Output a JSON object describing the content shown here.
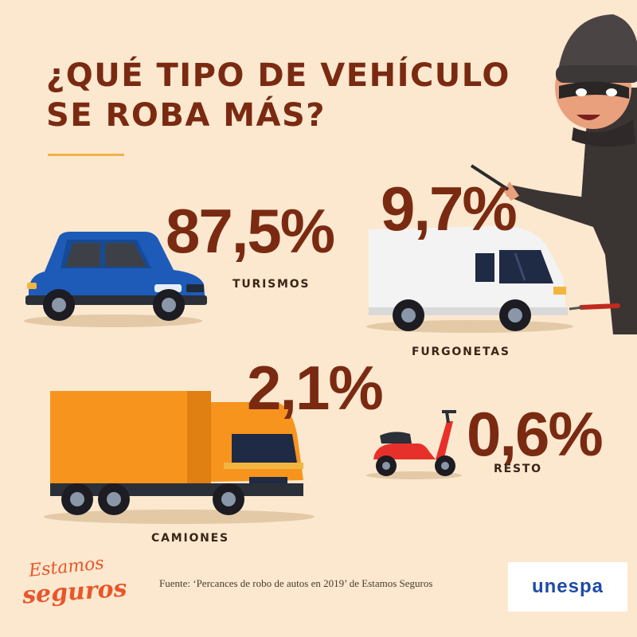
{
  "title": {
    "line1": "¿QUÉ TIPO DE VEHÍCULO",
    "line2": "SE ROBA MÁS?"
  },
  "stats": {
    "turismos": {
      "value": "87,5%",
      "label": "TURISMOS"
    },
    "furgonetas": {
      "value": "9,7%",
      "label": "FURGONETAS"
    },
    "camiones": {
      "value": "2,1%",
      "label": "CAMIONES"
    },
    "resto": {
      "value": "0,6%",
      "label": "RESTO"
    }
  },
  "source": "Fuente: ‘Percances de robo de autos en 2019’ de Estamos Seguros",
  "logo": {
    "line1": "Estamos",
    "line2": "seguros"
  },
  "partner_logo": {
    "text": "unespa"
  },
  "icons": [
    "car-icon",
    "van-icon",
    "truck-icon",
    "scooter-icon",
    "thief-illustration"
  ],
  "colors": {
    "background": "#fbe8cf",
    "title": "#7b2a12",
    "accent": "#f0b24a",
    "car": "#1e5bb8",
    "truck": "#f7941d",
    "scooter": "#e8302a",
    "van": "#f3f3f3"
  }
}
